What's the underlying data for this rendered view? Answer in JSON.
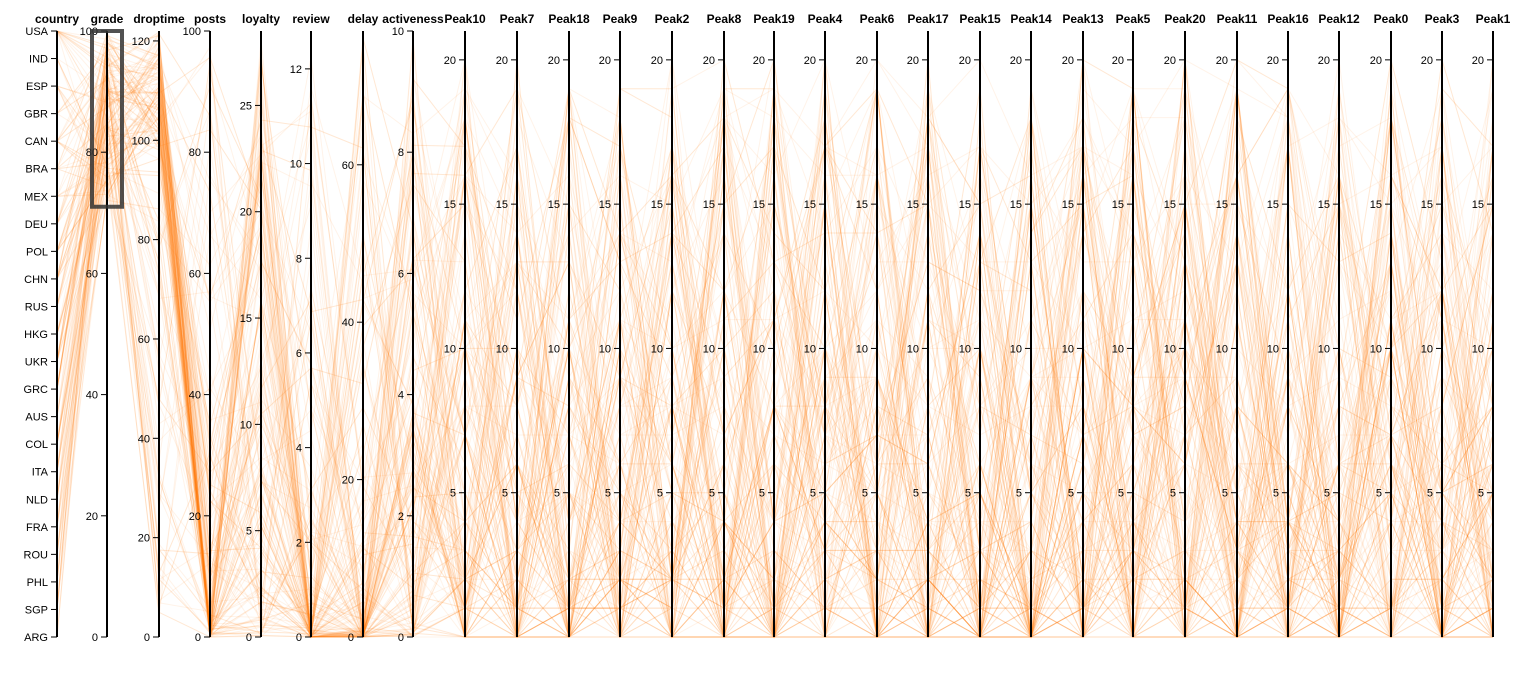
{
  "chart_data": {
    "type": "parallel-coordinates",
    "line_color": "#ff7f0e",
    "axis_color": "#000000",
    "brush_color": "#333333",
    "axes": [
      {
        "name": "country",
        "kind": "categorical",
        "categories": [
          "USA",
          "IND",
          "ESP",
          "GBR",
          "CAN",
          "BRA",
          "MEX",
          "DEU",
          "POL",
          "CHN",
          "RUS",
          "HKG",
          "UKR",
          "GRC",
          "AUS",
          "COL",
          "ITA",
          "NLD",
          "FRA",
          "ROU",
          "PHL",
          "SGP",
          "ARG"
        ]
      },
      {
        "name": "grade",
        "kind": "numeric",
        "domain": [
          0,
          100
        ],
        "ticks": [
          0,
          20,
          40,
          60,
          80,
          100
        ],
        "brush": [
          71,
          100
        ]
      },
      {
        "name": "droptime",
        "kind": "numeric",
        "domain": [
          0,
          122
        ],
        "ticks": [
          0,
          20,
          40,
          60,
          80,
          100,
          120
        ]
      },
      {
        "name": "posts",
        "kind": "numeric",
        "domain": [
          0,
          100
        ],
        "ticks": [
          0,
          20,
          40,
          60,
          80,
          100
        ]
      },
      {
        "name": "loyalty",
        "kind": "numeric",
        "domain": [
          0,
          28.5
        ],
        "ticks": [
          0,
          5,
          10,
          15,
          20,
          25
        ]
      },
      {
        "name": "review",
        "kind": "numeric",
        "domain": [
          0,
          12.8
        ],
        "ticks": [
          0,
          2,
          4,
          6,
          8,
          10,
          12
        ]
      },
      {
        "name": "delay",
        "kind": "numeric",
        "domain": [
          0,
          77
        ],
        "ticks": [
          0,
          20,
          40,
          60
        ]
      },
      {
        "name": "activeness",
        "kind": "numeric",
        "domain": [
          0,
          10
        ],
        "ticks": [
          0,
          2,
          4,
          6,
          8,
          10
        ]
      },
      {
        "name": "Peak10",
        "kind": "numeric",
        "domain": [
          0,
          21
        ],
        "ticks": [
          5,
          10,
          15,
          20
        ]
      },
      {
        "name": "Peak7",
        "kind": "numeric",
        "domain": [
          0,
          21
        ],
        "ticks": [
          5,
          10,
          15,
          20
        ]
      },
      {
        "name": "Peak18",
        "kind": "numeric",
        "domain": [
          0,
          21
        ],
        "ticks": [
          5,
          10,
          15,
          20
        ]
      },
      {
        "name": "Peak9",
        "kind": "numeric",
        "domain": [
          0,
          21
        ],
        "ticks": [
          5,
          10,
          15,
          20
        ]
      },
      {
        "name": "Peak2",
        "kind": "numeric",
        "domain": [
          0,
          21
        ],
        "ticks": [
          5,
          10,
          15,
          20
        ]
      },
      {
        "name": "Peak8",
        "kind": "numeric",
        "domain": [
          0,
          21
        ],
        "ticks": [
          5,
          10,
          15,
          20
        ]
      },
      {
        "name": "Peak19",
        "kind": "numeric",
        "domain": [
          0,
          21
        ],
        "ticks": [
          5,
          10,
          15,
          20
        ]
      },
      {
        "name": "Peak4",
        "kind": "numeric",
        "domain": [
          0,
          21
        ],
        "ticks": [
          5,
          10,
          15,
          20
        ]
      },
      {
        "name": "Peak6",
        "kind": "numeric",
        "domain": [
          0,
          21
        ],
        "ticks": [
          5,
          10,
          15,
          20
        ]
      },
      {
        "name": "Peak17",
        "kind": "numeric",
        "domain": [
          0,
          21
        ],
        "ticks": [
          5,
          10,
          15,
          20
        ]
      },
      {
        "name": "Peak15",
        "kind": "numeric",
        "domain": [
          0,
          21
        ],
        "ticks": [
          5,
          10,
          15,
          20
        ]
      },
      {
        "name": "Peak14",
        "kind": "numeric",
        "domain": [
          0,
          21
        ],
        "ticks": [
          5,
          10,
          15,
          20
        ]
      },
      {
        "name": "Peak13",
        "kind": "numeric",
        "domain": [
          0,
          21
        ],
        "ticks": [
          5,
          10,
          15,
          20
        ]
      },
      {
        "name": "Peak5",
        "kind": "numeric",
        "domain": [
          0,
          21
        ],
        "ticks": [
          5,
          10,
          15,
          20
        ]
      },
      {
        "name": "Peak20",
        "kind": "numeric",
        "domain": [
          0,
          21
        ],
        "ticks": [
          5,
          10,
          15,
          20
        ]
      },
      {
        "name": "Peak11",
        "kind": "numeric",
        "domain": [
          0,
          21
        ],
        "ticks": [
          5,
          10,
          15,
          20
        ]
      },
      {
        "name": "Peak16",
        "kind": "numeric",
        "domain": [
          0,
          21
        ],
        "ticks": [
          5,
          10,
          15,
          20
        ]
      },
      {
        "name": "Peak12",
        "kind": "numeric",
        "domain": [
          0,
          21
        ],
        "ticks": [
          5,
          10,
          15,
          20
        ]
      },
      {
        "name": "Peak0",
        "kind": "numeric",
        "domain": [
          0,
          21
        ],
        "ticks": [
          5,
          10,
          15,
          20
        ]
      },
      {
        "name": "Peak3",
        "kind": "numeric",
        "domain": [
          0,
          21
        ],
        "ticks": [
          5,
          10,
          15,
          20
        ]
      },
      {
        "name": "Peak1",
        "kind": "numeric",
        "domain": [
          0,
          21
        ],
        "ticks": [
          5,
          10,
          15,
          20
        ]
      }
    ]
  }
}
